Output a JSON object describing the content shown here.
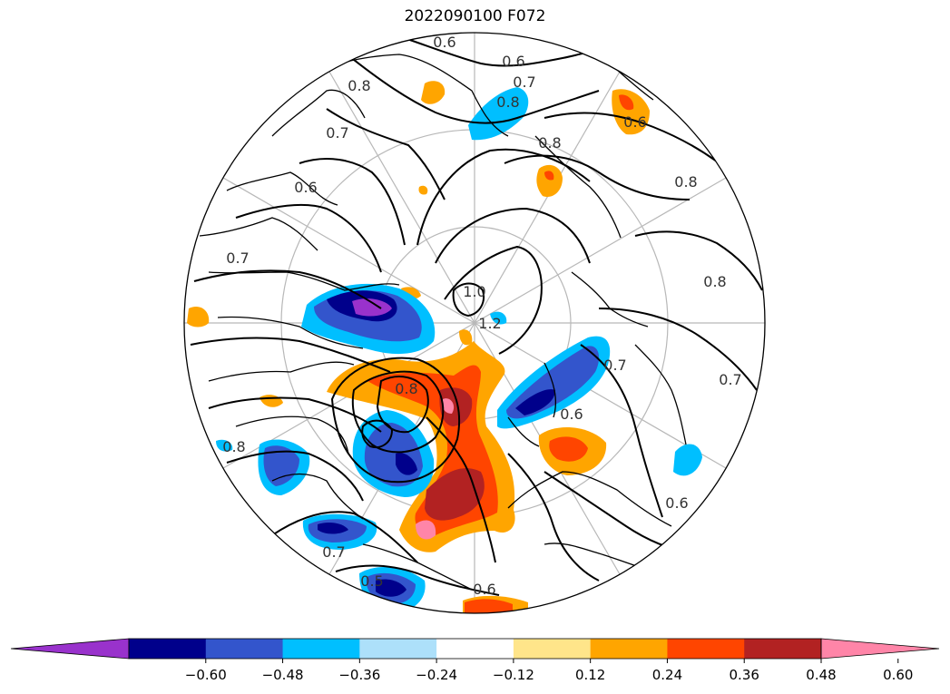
{
  "title": "2022090100 F072",
  "colorbar": {
    "tick_labels": [
      "−0.60",
      "−0.48",
      "−0.36",
      "−0.24",
      "−0.12",
      "0.12",
      "0.24",
      "0.36",
      "0.48",
      "0.60"
    ],
    "colors": [
      "#9932cc",
      "#00008b",
      "#3355cc",
      "#00bfff",
      "#ade0fa",
      "#ffffff",
      "#ffe58a",
      "#ffa500",
      "#ff4500",
      "#b22222",
      "#ff85a8"
    ],
    "extend": "both"
  },
  "contour_labels": [
    {
      "text": "0.6",
      "pos": [
        490,
        52
      ]
    },
    {
      "text": "0.6",
      "pos": [
        566,
        73
      ]
    },
    {
      "text": "0.7",
      "pos": [
        578,
        96
      ]
    },
    {
      "text": "0.8",
      "pos": [
        560,
        118
      ]
    },
    {
      "text": "0.8",
      "pos": [
        396,
        100
      ]
    },
    {
      "text": "0.7",
      "pos": [
        372,
        152
      ]
    },
    {
      "text": "0.6",
      "pos": [
        337,
        212
      ]
    },
    {
      "text": "0.7",
      "pos": [
        262,
        290
      ]
    },
    {
      "text": "0.8",
      "pos": [
        606,
        163
      ]
    },
    {
      "text": "0.8",
      "pos": [
        756,
        206
      ]
    },
    {
      "text": "0.8",
      "pos": [
        788,
        316
      ]
    },
    {
      "text": "0.6",
      "pos": [
        700,
        140
      ]
    },
    {
      "text": "0.7",
      "pos": [
        678,
        408
      ]
    },
    {
      "text": "0.7",
      "pos": [
        805,
        424
      ]
    },
    {
      "text": "0.6",
      "pos": [
        746,
        560
      ]
    },
    {
      "text": "0.6",
      "pos": [
        630,
        462
      ]
    },
    {
      "text": "0.8",
      "pos": [
        448,
        434
      ]
    },
    {
      "text": "0.8",
      "pos": [
        258,
        498
      ]
    },
    {
      "text": "0.7",
      "pos": [
        368,
        614
      ]
    },
    {
      "text": "0.5",
      "pos": [
        410,
        646
      ]
    },
    {
      "text": "0.6",
      "pos": [
        534,
        655
      ]
    },
    {
      "text": "1.0",
      "pos": [
        523,
        327
      ]
    },
    {
      "text": "1.2",
      "pos": [
        540,
        362
      ]
    }
  ]
}
